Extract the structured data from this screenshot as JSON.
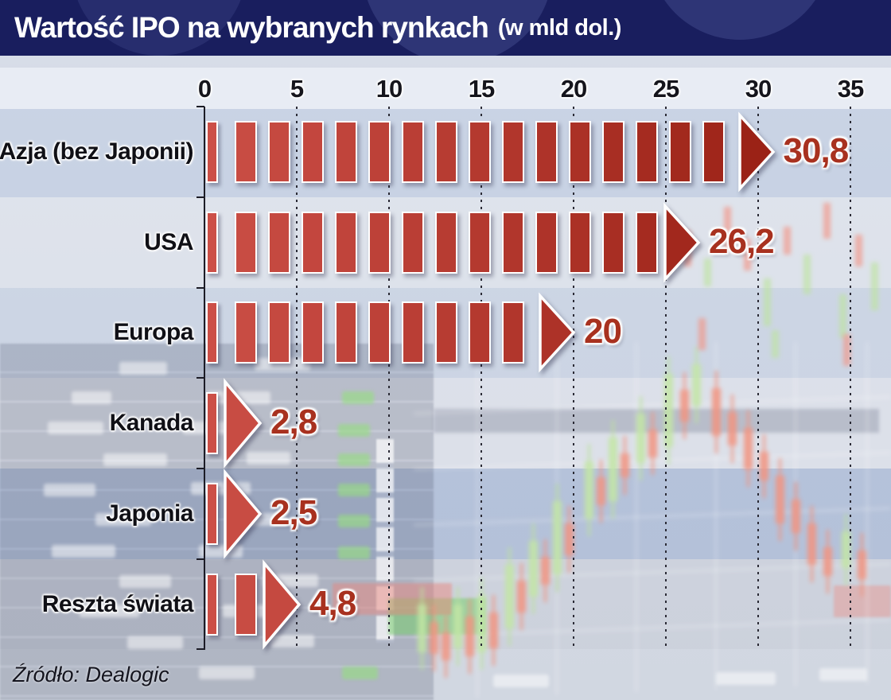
{
  "header": {
    "title": "Wartość IPO na wybranych rynkach",
    "subtitle": "(w mld dol.)"
  },
  "source_label": "Źródło: Dealogic",
  "chart_data": {
    "type": "bar",
    "orientation": "horizontal",
    "title": "Wartość IPO na wybranych rynkach (w mld dol.)",
    "unit": "mld dol.",
    "categories": [
      "Azja (bez Japonii)",
      "USA",
      "Europa",
      "Kanada",
      "Japonia",
      "Reszta świata"
    ],
    "values": [
      30.8,
      26.2,
      20,
      2.8,
      2.5,
      4.8
    ],
    "value_labels": [
      "30,8",
      "26,2",
      "20",
      "2,8",
      "2,5",
      "4,8"
    ],
    "x_ticks": [
      0,
      5,
      10,
      15,
      20,
      25,
      30,
      35
    ],
    "xlim": [
      0,
      35
    ],
    "grid": "dashed-vertical",
    "bar_style": "segmented-arrow",
    "colors": {
      "bar_light": "#cc4f47",
      "bar_dark": "#9a2115",
      "value_label": "#a8311f",
      "category_label": "#101016",
      "axis_label": "#15151c",
      "header_bg": "#191e5e",
      "header_text": "#ffffff"
    }
  }
}
